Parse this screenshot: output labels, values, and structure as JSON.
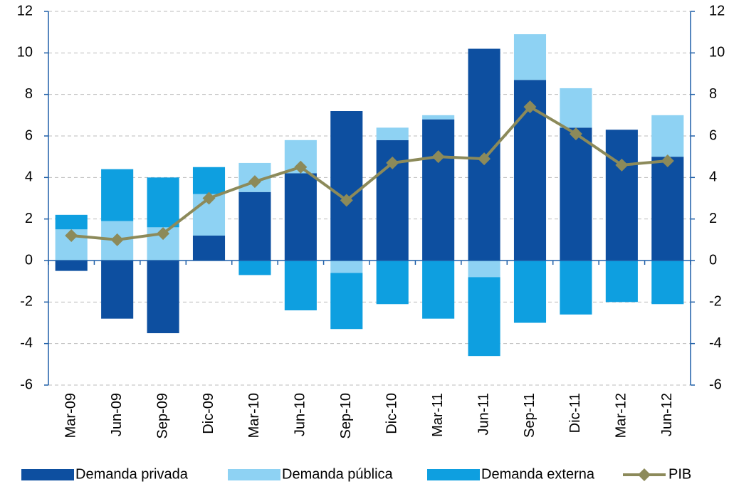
{
  "chart_data": {
    "type": "bar",
    "categories": [
      "Mar-09",
      "Jun-09",
      "Sep-09",
      "Dic-09",
      "Mar-10",
      "Jun-10",
      "Sep-10",
      "Dic-10",
      "Mar-11",
      "Jun-11",
      "Sep-11",
      "Dic-11",
      "Mar-12",
      "Jun-12"
    ],
    "series": [
      {
        "name": "Demanda privada",
        "color": "#0d4fa0",
        "values": [
          -0.5,
          -2.8,
          -3.5,
          1.2,
          3.3,
          4.2,
          7.2,
          5.8,
          6.8,
          10.2,
          8.7,
          6.4,
          6.3,
          5.0
        ]
      },
      {
        "name": "Demanda pública",
        "color": "#8ed2f3",
        "values": [
          1.5,
          1.9,
          1.6,
          2.0,
          1.4,
          1.6,
          -0.6,
          0.6,
          0.2,
          -0.8,
          2.2,
          1.9,
          0,
          2.0
        ]
      },
      {
        "name": "Demanda externa",
        "color": "#0e9fe0",
        "values": [
          0.7,
          2.5,
          2.4,
          1.3,
          -0.7,
          -2.4,
          -2.7,
          -2.1,
          -2.8,
          -3.8,
          -3.0,
          -2.6,
          -2.0,
          -2.1
        ]
      },
      {
        "name": "PIB",
        "type": "line",
        "color": "#8c8a5a",
        "values": [
          1.2,
          1.0,
          1.3,
          3.0,
          3.8,
          4.5,
          2.9,
          4.7,
          5.0,
          4.9,
          7.4,
          6.1,
          4.6,
          4.8
        ]
      }
    ],
    "ylim": [
      -6,
      12
    ],
    "yticks": [
      -6,
      -4,
      -2,
      0,
      2,
      4,
      6,
      8,
      10,
      12
    ],
    "y2lim": [
      -6,
      12
    ],
    "y2ticks": [
      -6,
      -4,
      -2,
      0,
      2,
      4,
      6,
      8,
      10,
      12
    ],
    "grid": true,
    "legend": "bottom"
  }
}
